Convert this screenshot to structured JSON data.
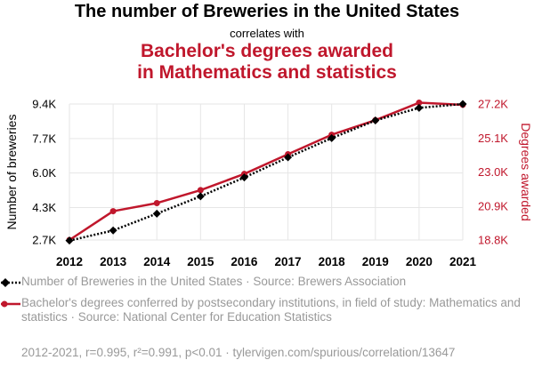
{
  "header": {
    "title": "The number of Breweries in the United States",
    "connector": "correlates with",
    "title2_line1": "Bachelor's degrees awarded",
    "title2_line2": "in Mathematics and statistics"
  },
  "colors": {
    "series1": "#000000",
    "series2": "#c0172c",
    "text": "#000000",
    "muted": "#999999"
  },
  "chart_data": {
    "type": "line",
    "x": [
      2012,
      2013,
      2014,
      2015,
      2016,
      2017,
      2018,
      2019,
      2020,
      2021
    ],
    "xlim": [
      2012,
      2021
    ],
    "x_ticks": [
      "2012",
      "2013",
      "2014",
      "2015",
      "2016",
      "2017",
      "2018",
      "2019",
      "2020",
      "2021"
    ],
    "ylabel_left": "Number of breweries",
    "ylabel_right": "Degrees awarded",
    "ylim_left": [
      2700,
      9400
    ],
    "ylim_right": [
      18800,
      27200
    ],
    "left_ticks": [
      {
        "value": 9400,
        "label": "9.4K"
      },
      {
        "value": 7700,
        "label": "7.7K"
      },
      {
        "value": 6000,
        "label": "6.0K"
      },
      {
        "value": 4300,
        "label": "4.3K"
      },
      {
        "value": 2700,
        "label": "2.7K"
      }
    ],
    "right_ticks": [
      {
        "value": 27200,
        "label": "27.2K"
      },
      {
        "value": 25100,
        "label": "25.1K"
      },
      {
        "value": 23000,
        "label": "23.0K"
      },
      {
        "value": 20900,
        "label": "20.9K"
      },
      {
        "value": 18800,
        "label": "18.8K"
      }
    ],
    "series": [
      {
        "name": "Number of Breweries in the United States",
        "axis": "left",
        "style": "dotted",
        "marker": "diamond",
        "values": [
          2670,
          3170,
          4000,
          4850,
          5780,
          6770,
          7720,
          8590,
          9210,
          9400
        ]
      },
      {
        "name": "Bachelor's degrees awarded in Mathematics and statistics",
        "axis": "right",
        "style": "solid",
        "marker": "circle",
        "values": [
          18800,
          20580,
          21080,
          21880,
          22880,
          24100,
          25300,
          26200,
          27280,
          27150
        ]
      }
    ]
  },
  "legend": {
    "item1": "Number of Breweries in the United States · Source: Brewers Association",
    "item2": "Bachelor's degrees conferred by postsecondary institutions, in field of study: Mathematics and statistics · Source: National Center for Education Statistics"
  },
  "footer": "2012-2021, r=0.995, r²=0.991, p<0.01 · tylervigen.com/spurious/correlation/13647"
}
